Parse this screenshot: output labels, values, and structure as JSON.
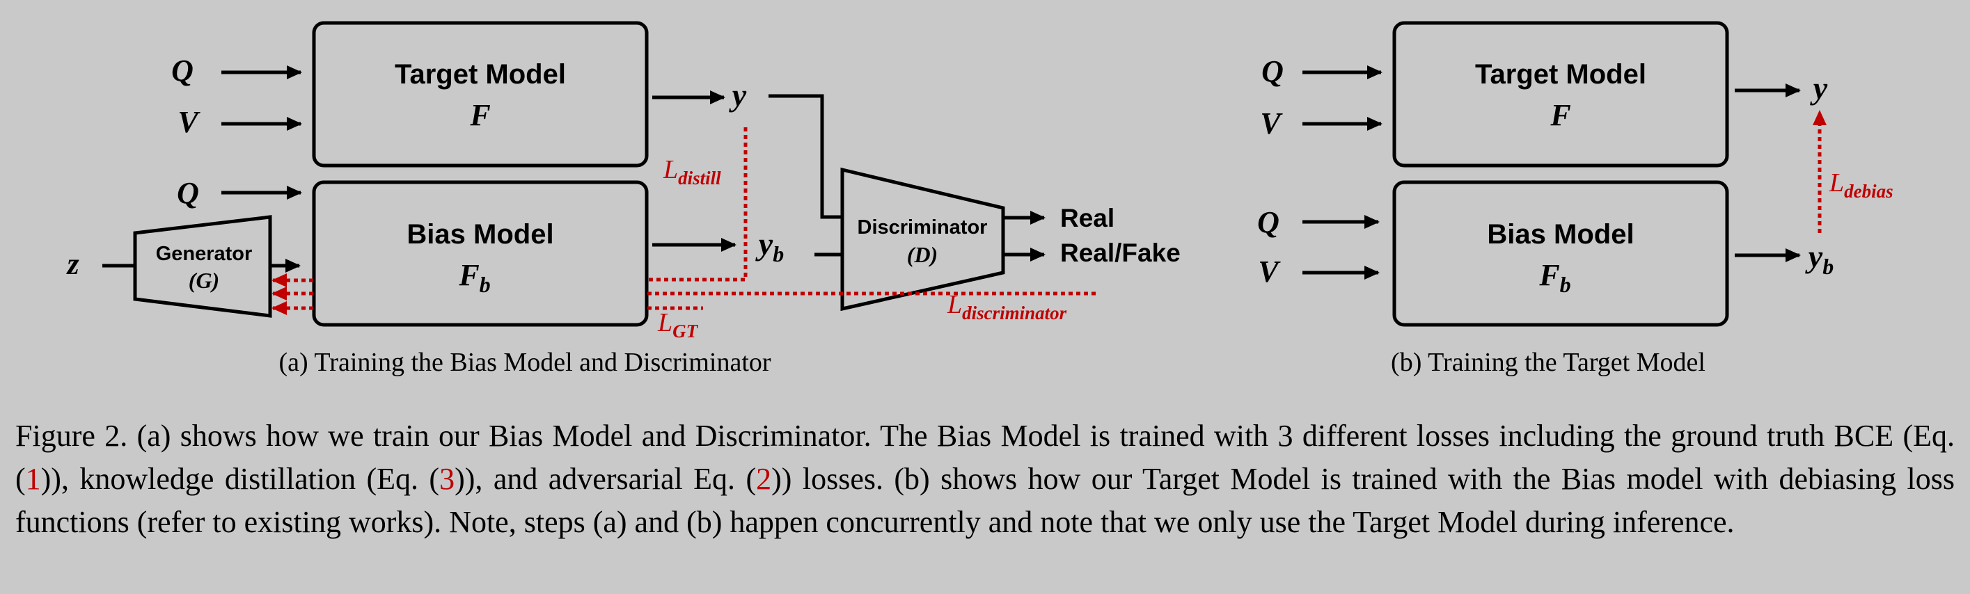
{
  "diagram_a": {
    "input_q": "Q",
    "input_v": "V",
    "input_z": "z",
    "target_model_title": "Target Model",
    "target_model_symbol": "F",
    "bias_model_title": "Bias Model",
    "bias_model_symbol": "F",
    "bias_model_symbol_sub": "b",
    "generator_title": "Generator",
    "generator_symbol": "(G)",
    "discriminator_title": "Discriminator",
    "discriminator_symbol": "(D)",
    "output_y": "y",
    "output_yb": "y",
    "output_yb_sub": "b",
    "output_real": "Real",
    "output_realfake": "Real/Fake",
    "loss_distill_script": "L",
    "loss_distill_sub": "distill",
    "loss_gt_script": "L",
    "loss_gt_sub": "GT",
    "loss_disc_script": "L",
    "loss_disc_sub": "discriminator",
    "subcaption": "(a) Training the Bias Model and Discriminator"
  },
  "diagram_b": {
    "input_q": "Q",
    "input_v": "V",
    "target_model_title": "Target Model",
    "target_model_symbol": "F",
    "bias_model_title": "Bias Model",
    "bias_model_symbol": "F",
    "bias_model_symbol_sub": "b",
    "output_y": "y",
    "output_yb": "y",
    "output_yb_sub": "b",
    "loss_debias_script": "L",
    "loss_debias_sub": "debias",
    "subcaption": "(b) Training the Target Model"
  },
  "caption": {
    "p1": "Figure 2. (a) shows how we train our Bias Model and Discriminator. The Bias Model is trained with 3 different losses including the ground truth BCE (Eq. (",
    "ref1": "1",
    "p2": ")), knowledge distillation (Eq. (",
    "ref3": "3",
    "p3": ")), and adversarial Eq. (",
    "ref2": "2",
    "p4": ")) losses.  (b) shows how our Target Model is trained with the Bias model with debiasing loss functions (refer to existing works). Note, steps (a) and (b) happen concurrently and note that we only use the Target Model during inference."
  },
  "colors": {
    "background": "#c9c9c9",
    "loss_red": "#c00000",
    "line": "#000000"
  }
}
